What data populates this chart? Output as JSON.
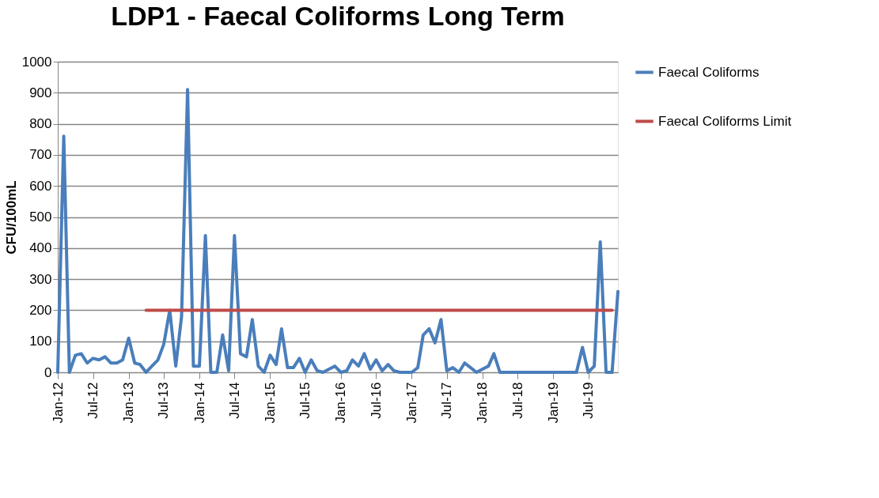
{
  "chart_data": {
    "type": "line",
    "title": "LDP1 - Faecal Coliforms Long Term",
    "ylabel": "CFU/100mL",
    "x": [
      "2012-01",
      "2012-02",
      "2012-03",
      "2012-04",
      "2012-05",
      "2012-06",
      "2012-07",
      "2012-08",
      "2012-09",
      "2012-10",
      "2012-11",
      "2012-12",
      "2013-01",
      "2013-02",
      "2013-03",
      "2013-04",
      "2013-05",
      "2013-06",
      "2013-07",
      "2013-08",
      "2013-09",
      "2013-10",
      "2013-11",
      "2013-12",
      "2014-01",
      "2014-02",
      "2014-03",
      "2014-04",
      "2014-05",
      "2014-06",
      "2014-07",
      "2014-08",
      "2014-09",
      "2014-10",
      "2014-11",
      "2014-12",
      "2015-01",
      "2015-02",
      "2015-03",
      "2015-04",
      "2015-05",
      "2015-06",
      "2015-07",
      "2015-08",
      "2015-09",
      "2015-10",
      "2015-11",
      "2015-12",
      "2016-01",
      "2016-02",
      "2016-03",
      "2016-04",
      "2016-05",
      "2016-06",
      "2016-07",
      "2016-08",
      "2016-09",
      "2016-10",
      "2016-11",
      "2016-12",
      "2017-01",
      "2017-02",
      "2017-03",
      "2017-04",
      "2017-05",
      "2017-06",
      "2017-07",
      "2017-08",
      "2017-09",
      "2017-10",
      "2017-11",
      "2017-12",
      "2018-01",
      "2018-02",
      "2018-03",
      "2018-04",
      "2018-05",
      "2018-06",
      "2018-07",
      "2018-08",
      "2018-09",
      "2018-10",
      "2018-11",
      "2018-12",
      "2019-01",
      "2019-02",
      "2019-03",
      "2019-04",
      "2019-05",
      "2019-06",
      "2019-07",
      "2019-08",
      "2019-09",
      "2019-10",
      "2019-11",
      "2019-12"
    ],
    "series": [
      {
        "name": "Faecal Coliforms",
        "color": "#4a7ebb",
        "values": [
          0,
          760,
          0,
          55,
          60,
          30,
          45,
          40,
          50,
          30,
          30,
          40,
          110,
          30,
          25,
          0,
          20,
          40,
          90,
          200,
          20,
          180,
          910,
          20,
          20,
          440,
          0,
          0,
          120,
          5,
          440,
          60,
          50,
          170,
          20,
          0,
          55,
          25,
          140,
          15,
          15,
          45,
          0,
          40,
          5,
          0,
          10,
          20,
          0,
          5,
          40,
          20,
          60,
          10,
          40,
          5,
          25,
          5,
          0,
          0,
          0,
          15,
          120,
          140,
          95,
          170,
          5,
          15,
          0,
          30,
          15,
          0,
          10,
          20,
          60,
          0,
          0,
          0,
          0,
          0,
          0,
          0,
          0,
          0,
          0,
          0,
          0,
          0,
          0,
          80,
          0,
          20,
          420,
          0,
          0,
          260
        ]
      },
      {
        "name": "Faecal Coliforms Limit",
        "color": "#be4b48",
        "x": [
          "2013-04",
          "2019-11"
        ],
        "values": [
          200,
          200
        ]
      }
    ],
    "xlim": [
      "2012-01",
      "2019-12"
    ],
    "xticks": [
      {
        "value": "2012-01",
        "label": "Jan-12"
      },
      {
        "value": "2012-07",
        "label": "Jul-12"
      },
      {
        "value": "2013-01",
        "label": "Jan-13"
      },
      {
        "value": "2013-07",
        "label": "Jul-13"
      },
      {
        "value": "2014-01",
        "label": "Jan-14"
      },
      {
        "value": "2014-07",
        "label": "Jul-14"
      },
      {
        "value": "2015-01",
        "label": "Jan-15"
      },
      {
        "value": "2015-07",
        "label": "Jul-15"
      },
      {
        "value": "2016-01",
        "label": "Jan-16"
      },
      {
        "value": "2016-07",
        "label": "Jul-16"
      },
      {
        "value": "2017-01",
        "label": "Jan-17"
      },
      {
        "value": "2017-07",
        "label": "Jul-17"
      },
      {
        "value": "2018-01",
        "label": "Jan-18"
      },
      {
        "value": "2018-07",
        "label": "Jul-18"
      },
      {
        "value": "2019-01",
        "label": "Jan-19"
      },
      {
        "value": "2019-07",
        "label": "Jul-19"
      }
    ],
    "ylim": [
      0,
      1000
    ],
    "yticks": [
      0,
      100,
      200,
      300,
      400,
      500,
      600,
      700,
      800,
      900,
      1000
    ],
    "grid": "y",
    "legend": "right",
    "marker": "none",
    "line_style": "solid"
  }
}
